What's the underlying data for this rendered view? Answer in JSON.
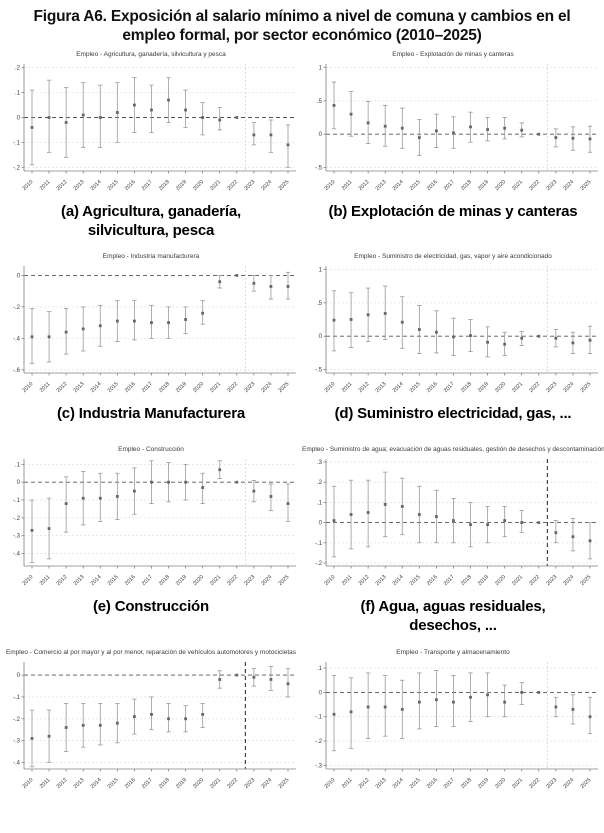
{
  "figure": {
    "title_prefix": "Figura A6.",
    "title_rest": " Exposición al salario mínimo a nivel de comuna y cambios en el empleo formal, por sector económico (2010–2025)"
  },
  "colors": {
    "marker": "#666666",
    "error_bar": "#999999",
    "gridline": "#dcdcdc",
    "zero_line": "#555555",
    "vline_light": "#cccccc",
    "vline_dark": "#222222",
    "spine": "#808080",
    "tick_text": "#3a3a3a"
  },
  "years": [
    "2010",
    "2011",
    "2012",
    "2013",
    "2014",
    "2015",
    "2016",
    "2017",
    "2018",
    "2019",
    "2020",
    "2021",
    "2022",
    "2023",
    "2024",
    "2025"
  ],
  "chart_data": [
    {
      "type": "scatter",
      "panel": "a",
      "title": "Empleo - Agricultura, ganadería, silvicultura y pesca",
      "caption": "(a) Agricultura, ganadería,\nsilvicultura, pesca",
      "ylim": [
        -0.215,
        0.215
      ],
      "tick_values": [
        0.2,
        0.1,
        0,
        -0.1,
        -0.2
      ],
      "tick_labels": [
        ".2",
        ".1",
        "0",
        "-.1",
        "-.2"
      ],
      "est": [
        -0.04,
        0.0,
        -0.02,
        0.01,
        0.0,
        0.02,
        0.05,
        0.03,
        0.07,
        0.03,
        0.0,
        -0.01,
        0,
        -0.07,
        -0.07,
        -0.11
      ],
      "lo": [
        -0.19,
        -0.14,
        -0.16,
        -0.12,
        -0.12,
        -0.1,
        -0.06,
        -0.06,
        -0.02,
        -0.04,
        -0.07,
        -0.05,
        0,
        -0.11,
        -0.14,
        -0.2
      ],
      "hi": [
        0.11,
        0.15,
        0.12,
        0.14,
        0.13,
        0.14,
        0.16,
        0.13,
        0.16,
        0.11,
        0.06,
        0.04,
        0,
        -0.02,
        -0.01,
        -0.03
      ],
      "ref_index": 12,
      "vline_x": 12.5,
      "vline_dark": false
    },
    {
      "type": "scatter",
      "panel": "b",
      "title": "Empleo - Explotación de minas y canteras",
      "caption": "(b) Explotación de minas y canteras",
      "ylim": [
        -0.55,
        1.05
      ],
      "tick_values": [
        1,
        0.5,
        0,
        -0.5
      ],
      "tick_labels": [
        "1",
        ".5",
        "0",
        "-.5"
      ],
      "est": [
        0.43,
        0.3,
        0.17,
        0.12,
        0.09,
        -0.05,
        0.05,
        0.02,
        0.11,
        0.07,
        0.09,
        0.06,
        0,
        -0.05,
        -0.06,
        -0.07
      ],
      "lo": [
        0.08,
        -0.03,
        -0.14,
        -0.18,
        -0.21,
        -0.32,
        -0.2,
        -0.21,
        -0.12,
        -0.1,
        -0.07,
        -0.04,
        0,
        -0.19,
        -0.24,
        -0.27
      ],
      "hi": [
        0.78,
        0.64,
        0.49,
        0.43,
        0.39,
        0.22,
        0.3,
        0.26,
        0.33,
        0.25,
        0.25,
        0.17,
        0,
        0.08,
        0.11,
        0.12
      ],
      "ref_index": 12,
      "vline_x": 12.5,
      "vline_dark": false
    },
    {
      "type": "scatter",
      "panel": "c",
      "title": "Empleo - Industria manufacturera",
      "caption": "(c) Industria Manufacturera",
      "ylim": [
        -0.62,
        0.06
      ],
      "tick_values": [
        0,
        -0.2,
        -0.4,
        -0.6
      ],
      "tick_labels": [
        "0",
        "-.2",
        "-.4",
        "-.6"
      ],
      "est": [
        -0.39,
        -0.39,
        -0.36,
        -0.34,
        -0.32,
        -0.29,
        -0.29,
        -0.3,
        -0.3,
        -0.28,
        -0.24,
        -0.04,
        0,
        -0.05,
        -0.07,
        -0.07
      ],
      "lo": [
        -0.56,
        -0.55,
        -0.5,
        -0.48,
        -0.45,
        -0.42,
        -0.41,
        -0.4,
        -0.4,
        -0.37,
        -0.31,
        -0.08,
        0,
        -0.1,
        -0.15,
        -0.15
      ],
      "hi": [
        -0.21,
        -0.23,
        -0.21,
        -0.2,
        -0.19,
        -0.16,
        -0.16,
        -0.19,
        -0.2,
        -0.2,
        -0.16,
        0.0,
        0,
        0.0,
        0.0,
        0.02
      ],
      "ref_index": 12,
      "vline_x": 12.5,
      "vline_dark": false
    },
    {
      "type": "scatter",
      "panel": "d",
      "title": "Empleo - Suministro de electricidad, gas, vapor y aire acondicionado",
      "caption": "(d) Suministro electricidad, gas, ...",
      "ylim": [
        -0.55,
        1.05
      ],
      "tick_values": [
        1,
        0.5,
        0,
        -0.5
      ],
      "tick_labels": [
        "1",
        ".5",
        "0",
        "-.5"
      ],
      "est": [
        0.24,
        0.25,
        0.32,
        0.34,
        0.21,
        0.1,
        0.06,
        -0.01,
        0.01,
        -0.09,
        -0.12,
        -0.03,
        0,
        -0.03,
        -0.1,
        -0.06
      ],
      "lo": [
        -0.22,
        -0.17,
        -0.08,
        -0.05,
        -0.18,
        -0.26,
        -0.25,
        -0.29,
        -0.23,
        -0.31,
        -0.29,
        -0.14,
        0,
        -0.16,
        -0.26,
        -0.26
      ],
      "hi": [
        0.68,
        0.65,
        0.72,
        0.75,
        0.59,
        0.46,
        0.38,
        0.27,
        0.25,
        0.14,
        0.06,
        0.07,
        0,
        0.1,
        0.06,
        0.15
      ],
      "ref_index": 12,
      "vline_x": 12.5,
      "vline_dark": false
    },
    {
      "type": "scatter",
      "panel": "e",
      "title": "Empleo - Construcción",
      "caption": "(e) Construcción",
      "ylim": [
        -0.47,
        0.13
      ],
      "tick_values": [
        0.1,
        0,
        -0.1,
        -0.2,
        -0.3,
        -0.4
      ],
      "tick_labels": [
        ".1",
        "0",
        "-.1",
        "-.2",
        "-.3",
        "-.4"
      ],
      "est": [
        -0.27,
        -0.26,
        -0.12,
        -0.09,
        -0.09,
        -0.08,
        -0.05,
        0.0,
        0.0,
        0.0,
        -0.03,
        0.07,
        0,
        -0.05,
        -0.08,
        -0.12
      ],
      "lo": [
        -0.45,
        -0.43,
        -0.28,
        -0.24,
        -0.22,
        -0.21,
        -0.18,
        -0.12,
        -0.11,
        -0.1,
        -0.12,
        0.02,
        0,
        -0.11,
        -0.16,
        -0.22
      ],
      "hi": [
        -0.1,
        -0.09,
        0.03,
        0.06,
        0.05,
        0.05,
        0.08,
        0.12,
        0.11,
        0.1,
        0.05,
        0.12,
        0,
        0.01,
        -0.01,
        -0.01
      ],
      "ref_index": 12,
      "vline_x": 12.5,
      "vline_dark": false
    },
    {
      "type": "scatter",
      "panel": "f",
      "title": "Empleo - Suministro de agua; evacuación de aguas residuales, gestión de desechos y descontaminación",
      "caption": "(f)  Agua, aguas residuales,\ndesechos, ...",
      "ylim": [
        -0.215,
        0.315
      ],
      "tick_values": [
        0.3,
        0.2,
        0.1,
        0,
        -0.1,
        -0.2
      ],
      "tick_labels": [
        ".3",
        ".2",
        ".1",
        "0",
        "-.1",
        "-.2"
      ],
      "est": [
        0.01,
        0.04,
        0.05,
        0.09,
        0.08,
        0.04,
        0.03,
        0.01,
        -0.01,
        -0.01,
        0.01,
        0.0,
        0,
        -0.05,
        -0.07,
        -0.09
      ],
      "lo": [
        -0.17,
        -0.13,
        -0.12,
        -0.07,
        -0.06,
        -0.1,
        -0.1,
        -0.1,
        -0.12,
        -0.1,
        -0.07,
        -0.05,
        0,
        -0.1,
        -0.14,
        -0.18
      ],
      "hi": [
        0.18,
        0.21,
        0.21,
        0.25,
        0.22,
        0.18,
        0.16,
        0.12,
        0.1,
        0.08,
        0.08,
        0.06,
        0,
        0.01,
        0.02,
        0.0
      ],
      "ref_index": 12,
      "vline_x": 12.5,
      "vline_dark": true
    },
    {
      "type": "scatter",
      "panel": "g",
      "title": "Empleo - Comercio al por mayor y al por menor, reparación de vehículos automotores y motocicletas",
      "caption": null,
      "ylim": [
        -0.43,
        0.06
      ],
      "tick_values": [
        0,
        -0.1,
        -0.2,
        -0.3,
        -0.4
      ],
      "tick_labels": [
        "0",
        "-.1",
        "-.2",
        "-.3",
        "-.4"
      ],
      "est": [
        -0.29,
        -0.28,
        -0.24,
        -0.23,
        -0.23,
        -0.22,
        -0.19,
        -0.18,
        -0.2,
        -0.2,
        -0.18,
        -0.02,
        0,
        -0.01,
        -0.02,
        -0.04
      ],
      "lo": [
        -0.42,
        -0.4,
        -0.35,
        -0.33,
        -0.32,
        -0.31,
        -0.27,
        -0.25,
        -0.26,
        -0.26,
        -0.24,
        -0.06,
        0,
        -0.05,
        -0.07,
        -0.1
      ],
      "hi": [
        -0.16,
        -0.16,
        -0.13,
        -0.13,
        -0.13,
        -0.13,
        -0.11,
        -0.1,
        -0.13,
        -0.14,
        -0.13,
        0.02,
        0,
        0.03,
        0.04,
        0.03
      ],
      "ref_index": 12,
      "vline_x": 12.5,
      "vline_dark": true
    },
    {
      "type": "scatter",
      "panel": "h",
      "title": "Empleo - Transporte y almacenamiento",
      "caption": null,
      "ylim": [
        -0.315,
        0.125
      ],
      "tick_values": [
        0.1,
        0,
        -0.1,
        -0.2,
        -0.3
      ],
      "tick_labels": [
        ".1",
        "0",
        "-.1",
        "-.2",
        "-.3"
      ],
      "est": [
        -0.09,
        -0.08,
        -0.06,
        -0.06,
        -0.07,
        -0.04,
        -0.03,
        -0.04,
        -0.02,
        -0.01,
        -0.04,
        0.0,
        0,
        -0.06,
        -0.07,
        -0.1
      ],
      "lo": [
        -0.24,
        -0.23,
        -0.19,
        -0.18,
        -0.19,
        -0.15,
        -0.14,
        -0.14,
        -0.12,
        -0.1,
        -0.1,
        -0.05,
        0,
        -0.1,
        -0.13,
        -0.17
      ],
      "hi": [
        0.07,
        0.06,
        0.08,
        0.07,
        0.05,
        0.08,
        0.09,
        0.07,
        0.08,
        0.08,
        0.03,
        0.04,
        0,
        -0.02,
        -0.01,
        -0.02
      ],
      "ref_index": 12,
      "vline_x": 12.5,
      "vline_dark": false
    }
  ]
}
